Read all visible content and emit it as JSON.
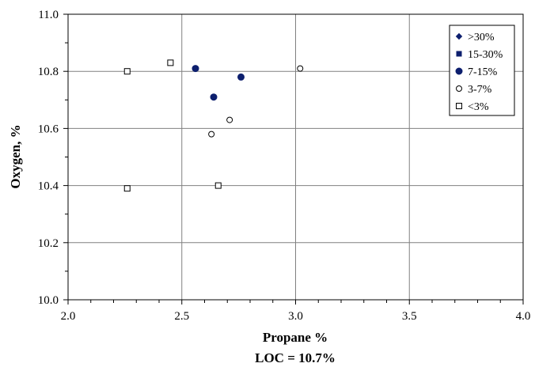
{
  "chart_data": {
    "type": "scatter",
    "xlabel": "Propane %",
    "ylabel": "Oxygen,  %",
    "annotation": "LOC = 10.7%",
    "xlim": [
      2.0,
      4.0
    ],
    "ylim": [
      10.0,
      11.0
    ],
    "xticks": [
      2.0,
      2.5,
      3.0,
      3.5,
      4.0
    ],
    "xtick_labels": [
      "2.0",
      "2.5",
      "3.0",
      "3.5",
      "4.0"
    ],
    "yticks": [
      10.0,
      10.2,
      10.4,
      10.6,
      10.8,
      11.0
    ],
    "ytick_labels": [
      "10.0",
      "10.2",
      "10.4",
      "10.6",
      "10.8",
      "11.0"
    ],
    "grid": true,
    "legend_position": "top-right",
    "colors": {
      "filled": "#0d1f6e",
      "open_stroke": "#000000",
      "open_fill": "#ffffff",
      "grid": "#808080"
    },
    "series": [
      {
        "name": ">30%",
        "marker": "diamond-filled",
        "points": []
      },
      {
        "name": "15-30%",
        "marker": "square-filled",
        "points": []
      },
      {
        "name": "7-15%",
        "marker": "circle-filled",
        "points": [
          [
            2.56,
            10.81
          ],
          [
            2.76,
            10.78
          ],
          [
            2.64,
            10.71
          ]
        ]
      },
      {
        "name": "3-7%",
        "marker": "circle-open",
        "points": [
          [
            3.02,
            10.81
          ],
          [
            2.71,
            10.63
          ],
          [
            2.63,
            10.58
          ]
        ]
      },
      {
        "name": "<3%",
        "marker": "square-open",
        "points": [
          [
            2.26,
            10.8
          ],
          [
            2.45,
            10.83
          ],
          [
            2.26,
            10.39
          ],
          [
            2.66,
            10.4
          ]
        ]
      }
    ]
  }
}
